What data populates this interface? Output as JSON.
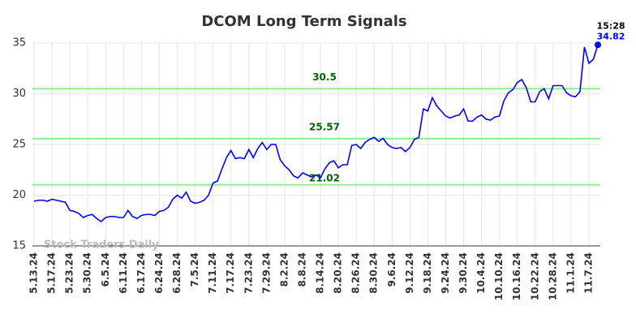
{
  "chart_data": {
    "type": "line",
    "title": "DCOM Long Term Signals",
    "watermark": "Stock Traders Daily",
    "last_time": "15:28",
    "color": "#0000ff",
    "signal_color": "#90ee90",
    "signal_label_color": "#006400",
    "signal_lines": [
      30.5,
      25.57,
      21.02
    ],
    "ylim": [
      15,
      35
    ],
    "yticks": [
      15,
      20,
      25,
      30,
      35
    ],
    "grid": true,
    "categories": [
      "5.13.24",
      null,
      null,
      null,
      "5.17.24",
      null,
      null,
      null,
      "5.23.24",
      null,
      null,
      null,
      "5.30.24",
      null,
      null,
      null,
      "6.5.24",
      null,
      null,
      null,
      "6.11.24",
      null,
      null,
      null,
      "6.17.24",
      null,
      null,
      null,
      "6.24.24",
      null,
      null,
      null,
      "6.28.24",
      null,
      null,
      null,
      "7.5.24",
      null,
      null,
      null,
      "7.11.24",
      null,
      null,
      null,
      "7.17.24",
      null,
      null,
      null,
      "7.23.24",
      null,
      null,
      null,
      "7.29.24",
      null,
      null,
      null,
      "8.2.24",
      null,
      null,
      null,
      "8.8.24",
      null,
      null,
      null,
      "8.14.24",
      null,
      null,
      null,
      "8.20.24",
      null,
      null,
      null,
      "8.26.24",
      null,
      null,
      null,
      "8.30.24",
      null,
      null,
      null,
      "9.6.24",
      null,
      null,
      null,
      "9.12.24",
      null,
      null,
      null,
      "9.18.24",
      null,
      null,
      null,
      "9.24.24",
      null,
      null,
      null,
      "9.30.24",
      null,
      null,
      null,
      "10.4.24",
      null,
      null,
      null,
      "10.10.24",
      null,
      null,
      null,
      "10.16.24",
      null,
      null,
      null,
      "10.22.24",
      null,
      null,
      null,
      "10.28.24",
      null,
      null,
      null,
      "11.1.24",
      null,
      null,
      null,
      "11.7.24",
      null,
      null
    ],
    "values": [
      19.4,
      19.5,
      19.5,
      19.4,
      19.6,
      19.5,
      19.4,
      19.3,
      18.5,
      18.4,
      18.2,
      17.8,
      18.0,
      18.1,
      17.7,
      17.4,
      17.8,
      17.9,
      17.9,
      17.8,
      17.8,
      18.5,
      17.9,
      17.7,
      18.0,
      18.1,
      18.1,
      18.0,
      18.4,
      18.5,
      18.8,
      19.6,
      20.0,
      19.7,
      20.3,
      19.4,
      19.2,
      19.3,
      19.5,
      20.0,
      21.2,
      21.4,
      22.6,
      23.7,
      24.4,
      23.6,
      23.7,
      23.6,
      24.5,
      23.7,
      24.6,
      25.2,
      24.5,
      25.0,
      25.0,
      23.5,
      22.9,
      22.5,
      21.9,
      21.7,
      22.2,
      22.0,
      21.8,
      22.0,
      21.7,
      22.6,
      23.2,
      23.4,
      22.7,
      23.0,
      23.0,
      24.9,
      25.0,
      24.6,
      25.2,
      25.5,
      25.7,
      25.3,
      25.6,
      25.0,
      24.7,
      24.6,
      24.7,
      24.3,
      24.7,
      25.5,
      25.7,
      28.5,
      28.3,
      29.6,
      28.8,
      28.3,
      27.8,
      27.6,
      27.8,
      27.9,
      28.5,
      27.3,
      27.3,
      27.7,
      27.9,
      27.5,
      27.4,
      27.7,
      27.8,
      29.3,
      30.1,
      30.4,
      31.1,
      31.4,
      30.6,
      29.2,
      29.2,
      30.2,
      30.5,
      29.5,
      30.8,
      30.8,
      30.8,
      30.1,
      29.8,
      29.7,
      30.2,
      34.6,
      33.0,
      33.4,
      34.82
    ]
  }
}
